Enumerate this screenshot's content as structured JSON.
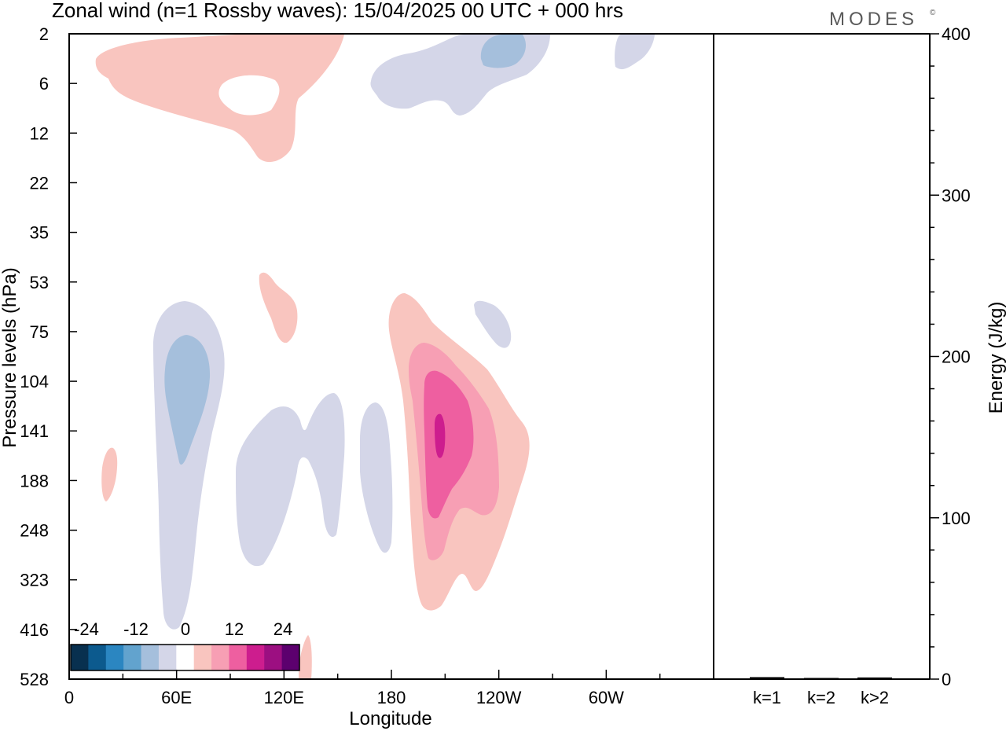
{
  "chart_data": {
    "type": "contour",
    "title": "Zonal wind (n=1 Rossby waves):  15/04/2025  00 UTC  + 000 hrs",
    "brand": "MODES",
    "brand_mark": "©",
    "xlabel": "Longitude",
    "ylabel": "Pressure levels (hPa)",
    "x_ticks": [
      "0",
      "60E",
      "120E",
      "180",
      "120W",
      "60W"
    ],
    "y_ticks": [
      "2",
      "6",
      "12",
      "22",
      "35",
      "53",
      "75",
      "104",
      "141",
      "188",
      "248",
      "323",
      "416",
      "528"
    ],
    "colorbar": {
      "labels": [
        "-24",
        "-12",
        "0",
        "12",
        "24"
      ],
      "levels": [
        -30,
        -25,
        -20,
        -15,
        -10,
        -5,
        0,
        5,
        10,
        15,
        20,
        25,
        30
      ],
      "colors": [
        "#08304f",
        "#0c5a8e",
        "#2b86c1",
        "#62a3ce",
        "#a5bfdc",
        "#d4d6e8",
        "#ffffff",
        "#f9c5bf",
        "#f79fb4",
        "#ee5fa0",
        "#cd1d8e",
        "#9c0f81",
        "#5c006e"
      ]
    },
    "contours": [
      {
        "level": 5,
        "color": "#f9c5bf",
        "region": "upper stratosphere near 60E-120E, 2-12 hPa",
        "approx_lon": [
          15,
          150
        ],
        "approx_plev": [
          2,
          16
        ]
      },
      {
        "level": -5,
        "color": "#d4d6e8",
        "region": "upper stratosphere near 170W-140W",
        "approx_lon": [
          170,
          250
        ],
        "approx_plev": [
          2,
          8
        ]
      },
      {
        "level": -10,
        "color": "#a5bfdc",
        "region": "near 130W, 2-4 hPa",
        "approx_lon": [
          230,
          245
        ],
        "approx_plev": [
          2,
          4
        ]
      },
      {
        "level": -5,
        "color": "#d4d6e8",
        "region": "near 90W top",
        "approx_lon": [
          305,
          325
        ],
        "approx_plev": [
          2,
          5
        ]
      },
      {
        "level": 5,
        "color": "#f9c5bf",
        "region": "near 105E, 53-90 hPa",
        "approx_lon": [
          105,
          125
        ],
        "approx_plev": [
          52,
          90
        ]
      },
      {
        "level": -5,
        "color": "#d4d6e8",
        "region": "near 50E-80E, 60-416 hPa",
        "approx_lon": [
          50,
          85
        ],
        "approx_plev": [
          60,
          416
        ]
      },
      {
        "level": -10,
        "color": "#a5bfdc",
        "region": "near 60E, 80-170 hPa",
        "approx_lon": [
          53,
          78
        ],
        "approx_plev": [
          80,
          170
        ]
      },
      {
        "level": -5,
        "color": "#d4d6e8",
        "region": "near 95E-155E, 120-300 hPa",
        "approx_lon": [
          93,
          155
        ],
        "approx_plev": [
          115,
          300
        ]
      },
      {
        "level": -5,
        "color": "#d4d6e8",
        "region": "near 165E-180, 120-270 hPa",
        "approx_lon": [
          163,
          180
        ],
        "approx_plev": [
          115,
          270
        ]
      },
      {
        "level": -5,
        "color": "#d4d6e8",
        "region": "near 130W, 65-90 hPa",
        "approx_lon": [
          225,
          245
        ],
        "approx_plev": [
          65,
          95
        ]
      },
      {
        "level": 5,
        "color": "#f9c5bf",
        "region": "near 175W-105W, 55-380 hPa",
        "approx_lon": [
          180,
          265
        ],
        "approx_plev": [
          55,
          380
        ]
      },
      {
        "level": 10,
        "color": "#f79fb4",
        "region": "near 165W-125W, 95-290 hPa",
        "approx_lon": [
          190,
          245
        ],
        "approx_plev": [
          95,
          290
        ]
      },
      {
        "level": 15,
        "color": "#ee5fa0",
        "region": "near 160W-145W, 115-240 hPa",
        "approx_lon": [
          198,
          225
        ],
        "approx_plev": [
          115,
          240
        ]
      },
      {
        "level": 20,
        "color": "#cd1d8e",
        "region": "near 153W, 125-175 hPa",
        "approx_lon": [
          204,
          210
        ],
        "approx_plev": [
          125,
          175
        ]
      },
      {
        "level": 5,
        "color": "#f9c5bf",
        "region": "near 20E, 170-210 hPa",
        "approx_lon": [
          18,
          27
        ],
        "approx_plev": [
          165,
          215
        ]
      },
      {
        "level": 5,
        "color": "#f9c5bf",
        "region": "near 130E, 440-528 hPa",
        "approx_lon": [
          125,
          135
        ],
        "approx_plev": [
          440,
          528
        ]
      }
    ],
    "energy_panel": {
      "ylabel": "Energy (J/kg)",
      "ylim": [
        0,
        400
      ],
      "y_ticks": [
        "0",
        "100",
        "200",
        "300",
        "400"
      ],
      "categories": [
        "k=1",
        "k=2",
        "k>2"
      ],
      "values": [
        0.5,
        0,
        0.3
      ]
    }
  }
}
